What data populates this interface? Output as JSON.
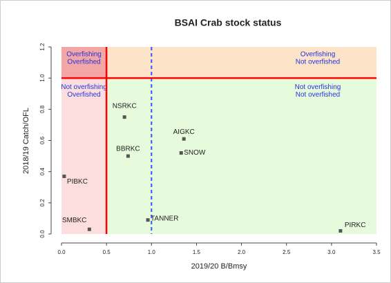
{
  "chart_data": {
    "type": "scatter",
    "title": "BSAI Crab stock status",
    "x_label": "2019/20  B/Bmsy",
    "y_label": "2018/19  Catch/OFL",
    "point_labels": [
      "PIBKC",
      "SMBKC",
      "NSRKC",
      "BBRKC",
      "AIGKC",
      "SNOW",
      "TANNER",
      "PIRKC"
    ],
    "x": [
      0.03,
      0.31,
      0.7,
      0.74,
      1.36,
      1.33,
      0.96,
      3.1
    ],
    "values": [
      0.37,
      0.03,
      0.75,
      0.5,
      0.61,
      0.52,
      0.09,
      0.02
    ],
    "color": "#555555",
    "xlim": [
      0,
      3.5
    ],
    "ylim": [
      0,
      1.2
    ],
    "xticks": [
      {
        "value": 0,
        "label": "0.0"
      },
      0.5,
      {
        "value": 1,
        "label": "1.0"
      },
      1.5,
      {
        "value": 2,
        "label": "2.0"
      },
      2.5,
      {
        "value": 3,
        "label": "3.0"
      },
      3.5
    ],
    "yticks": [
      {
        "value": 0,
        "label": "0.0"
      },
      0.2,
      0.4,
      0.6,
      0.8,
      {
        "value": 1,
        "label": "1.0"
      },
      1.2
    ],
    "vlines": [
      {
        "value": 0.5,
        "color": "#ff0000",
        "dashed": false
      },
      {
        "value": 1,
        "color": "#3355ff",
        "dashed": true
      }
    ],
    "hlines": [
      {
        "value": 1,
        "color": "#ff0000",
        "dashed": false
      }
    ],
    "zones": [
      {
        "x_side": "left",
        "y_side": "top",
        "fill": "#f4a6a6",
        "label": [
          "Overfishing",
          "Overfished"
        ]
      },
      {
        "x_side": "left",
        "y_side": "bottom",
        "fill": "#fddede",
        "label": [
          "Not overfishing",
          "Overfished"
        ]
      },
      {
        "x_side": "right",
        "y_side": "top",
        "fill": "#fde3c8",
        "label": [
          "Overfishing",
          "Not overfished"
        ]
      },
      {
        "x_side": "right",
        "y_side": "bottom",
        "fill": "#e5fbdc",
        "label": [
          "Not overfishing",
          "Not overfished"
        ]
      }
    ],
    "zone_label_color": "#2233dd"
  }
}
